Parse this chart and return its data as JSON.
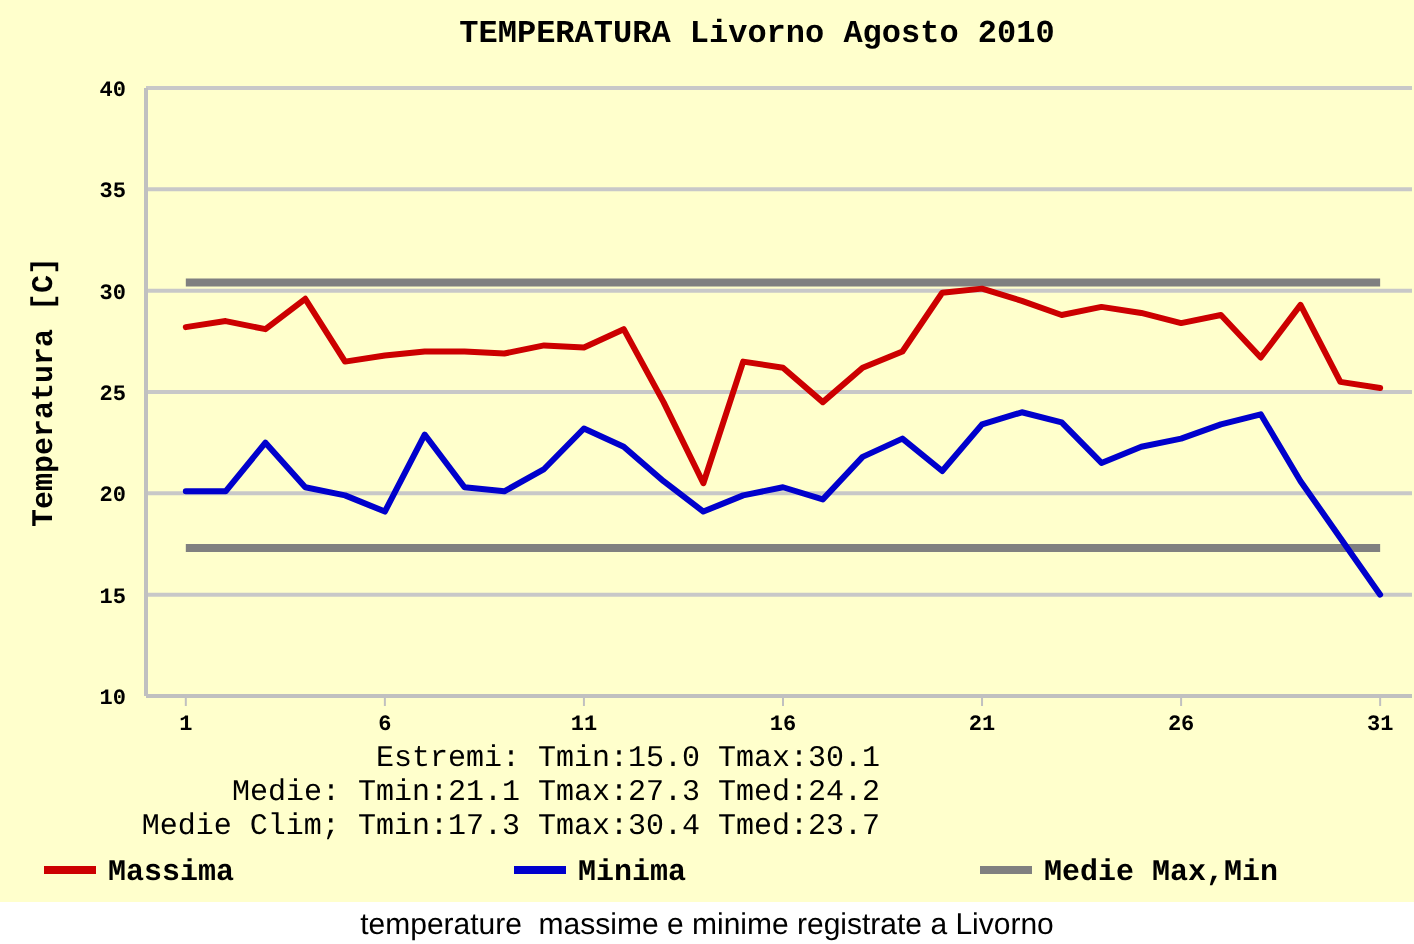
{
  "chart_data": {
    "type": "line",
    "title": "TEMPERATURA Livorno Agosto 2010",
    "ylabel": "Temperatura [C]",
    "x": [
      1,
      2,
      3,
      4,
      5,
      6,
      7,
      8,
      9,
      10,
      11,
      12,
      13,
      14,
      15,
      16,
      17,
      18,
      19,
      20,
      21,
      22,
      23,
      24,
      25,
      26,
      27,
      28,
      29,
      30,
      31
    ],
    "xlim": [
      0,
      31.8
    ],
    "xticks": [
      1,
      6,
      11,
      16,
      21,
      26,
      31
    ],
    "ylim": [
      10,
      40
    ],
    "yticks": [
      10,
      15,
      20,
      25,
      30,
      35,
      40
    ],
    "series": [
      {
        "name": "Massima",
        "color": "#cc0000",
        "values": [
          28.2,
          28.5,
          28.1,
          29.6,
          26.5,
          26.8,
          27.0,
          27.0,
          26.9,
          27.3,
          27.2,
          28.1,
          24.5,
          20.5,
          26.5,
          26.2,
          24.5,
          26.2,
          27.0,
          29.9,
          30.1,
          29.5,
          28.8,
          29.2,
          28.9,
          28.4,
          28.8,
          26.7,
          29.3,
          25.5,
          25.2
        ]
      },
      {
        "name": "Minima",
        "color": "#0000cc",
        "values": [
          20.1,
          20.1,
          22.5,
          20.3,
          19.9,
          19.1,
          22.9,
          20.3,
          20.1,
          21.2,
          23.2,
          22.3,
          20.6,
          19.1,
          19.9,
          20.3,
          19.7,
          21.8,
          22.7,
          21.1,
          23.4,
          24.0,
          23.5,
          21.5,
          22.3,
          22.7,
          23.4,
          23.9,
          20.6,
          17.8,
          15.0
        ]
      }
    ],
    "ref_lines": [
      {
        "axis": "y",
        "value": 30.4,
        "label": "Medie Max,Min",
        "color": "#808080"
      },
      {
        "axis": "y",
        "value": 17.3,
        "color": "#808080"
      }
    ],
    "annotations": [
      "Estremi: Tmin:15.0 Tmax:30.1",
      "Medie: Tmin:21.1 Tmax:27.3 Tmed:24.2",
      "Medie Clim; Tmin:17.3 Tmax:30.4 Tmed:23.7",
      "temperature  massime e minime registrate a Livorno"
    ],
    "grid": "y",
    "legend": "bottom",
    "marker": "none",
    "line_style": "solid"
  }
}
